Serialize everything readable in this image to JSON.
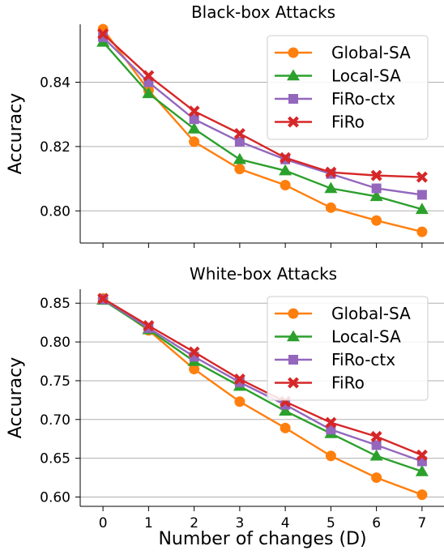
{
  "chart_data": [
    {
      "type": "line",
      "title": "Black-box Attacks",
      "xlabel": "",
      "ylabel": "Accuracy",
      "x": [
        0,
        1,
        2,
        3,
        4,
        5,
        6,
        7
      ],
      "xlim": [
        -0.5,
        7.5
      ],
      "ylim": [
        0.79,
        0.858
      ],
      "yticks": [
        0.8,
        0.82,
        0.84
      ],
      "ytick_labels": [
        "0.80",
        "0.82",
        "0.84"
      ],
      "grid": "horizontal",
      "legend_position": "top-right",
      "series": [
        {
          "name": "Global-SA",
          "color": "#ff7f0e",
          "marker": "circle",
          "values": [
            0.8565,
            0.8375,
            0.8215,
            0.813,
            0.808,
            0.801,
            0.797,
            0.7935
          ]
        },
        {
          "name": "Local-SA",
          "color": "#2ca02c",
          "marker": "triangle",
          "values": [
            0.8525,
            0.8365,
            0.8255,
            0.816,
            0.8125,
            0.807,
            0.8045,
            0.8005
          ]
        },
        {
          "name": "FiRo-ctx",
          "color": "#9467bd",
          "marker": "square",
          "values": [
            0.854,
            0.84,
            0.8285,
            0.8215,
            0.816,
            0.8115,
            0.807,
            0.805
          ]
        },
        {
          "name": "FiRo",
          "color": "#d62728",
          "marker": "x",
          "values": [
            0.855,
            0.842,
            0.831,
            0.824,
            0.8165,
            0.812,
            0.811,
            0.8105
          ]
        }
      ]
    },
    {
      "type": "line",
      "title": "White-box Attacks",
      "xlabel": "Number of changes (D)",
      "ylabel": "Accuracy",
      "x": [
        0,
        1,
        2,
        3,
        4,
        5,
        6,
        7
      ],
      "xticks": [
        "0",
        "1",
        "2",
        "3",
        "4",
        "5",
        "6",
        "7"
      ],
      "xlim": [
        -0.5,
        7.5
      ],
      "ylim": [
        0.588,
        0.868
      ],
      "yticks": [
        0.6,
        0.65,
        0.7,
        0.75,
        0.8,
        0.85
      ],
      "ytick_labels": [
        "0.60",
        "0.65",
        "0.70",
        "0.75",
        "0.80",
        "0.85"
      ],
      "grid": "horizontal",
      "legend_position": "top-right",
      "series": [
        {
          "name": "Global-SA",
          "color": "#ff7f0e",
          "marker": "circle",
          "values": [
            0.856,
            0.815,
            0.765,
            0.723,
            0.689,
            0.653,
            0.625,
            0.603
          ]
        },
        {
          "name": "Local-SA",
          "color": "#2ca02c",
          "marker": "triangle",
          "values": [
            0.854,
            0.816,
            0.775,
            0.743,
            0.711,
            0.682,
            0.653,
            0.633
          ]
        },
        {
          "name": "FiRo-ctx",
          "color": "#9467bd",
          "marker": "square",
          "values": [
            0.855,
            0.818,
            0.781,
            0.748,
            0.719,
            0.687,
            0.667,
            0.646
          ]
        },
        {
          "name": "FiRo",
          "color": "#d62728",
          "marker": "x",
          "values": [
            0.856,
            0.821,
            0.787,
            0.752,
            0.723,
            0.696,
            0.678,
            0.654
          ]
        }
      ]
    }
  ]
}
